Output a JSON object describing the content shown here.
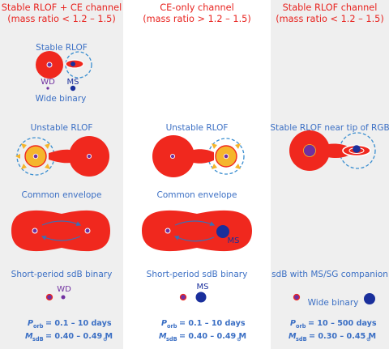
{
  "columns": [
    {
      "title_line1": "Stable RLOF + CE channel",
      "title_line2": "(mass ratio < 1.2 – 1.5)",
      "stage1": "Stable RLOF",
      "label_wd": "WD",
      "label_ms": "MS",
      "wide_binary": "Wide binary",
      "stage2": "Unstable RLOF",
      "stage3": "Common envelope",
      "stage4": "Short-period sdB binary",
      "final_label": "WD",
      "porb_range": "= 0.1 – 10 days",
      "msdb_range": "= 0.40 – 0.49 M"
    },
    {
      "title_line1": "CE-only channel",
      "title_line2": "(mass ratio > 1.2 – 1.5)",
      "stage2": "Unstable RLOF",
      "stage3": "Common envelope",
      "ce_label": "MS",
      "stage4": "Short-period sdB binary",
      "final_label": "MS",
      "porb_range": "= 0.1 – 10 days",
      "msdb_range": "= 0.40 – 0.49 M"
    },
    {
      "title_line1": "Stable RLOF channel",
      "title_line2": "(mass ratio < 1.2 – 1.5)",
      "stage2": "Stable RLOF near tip of RGB",
      "stage4": "sdB with MS/SG companion",
      "final_label": "Wide binary",
      "porb_range": "= 10 – 500 days",
      "msdb_range": "= 0.30 – 0.45 M"
    }
  ],
  "symbols": {
    "p": "P",
    "p_sub": "orb",
    "m": "M",
    "m_sub": "sdB",
    "sun": "⊙"
  },
  "colors": {
    "title": "#e8231f",
    "stage": "#3b6fc4",
    "star_red": "#f0281e",
    "wd_purple": "#7030a0",
    "ms_blue": "#1a2f9c",
    "core_yellow": "#f5b52c",
    "panel_gray": "#efefef",
    "dashed": "#3c8fd0"
  }
}
